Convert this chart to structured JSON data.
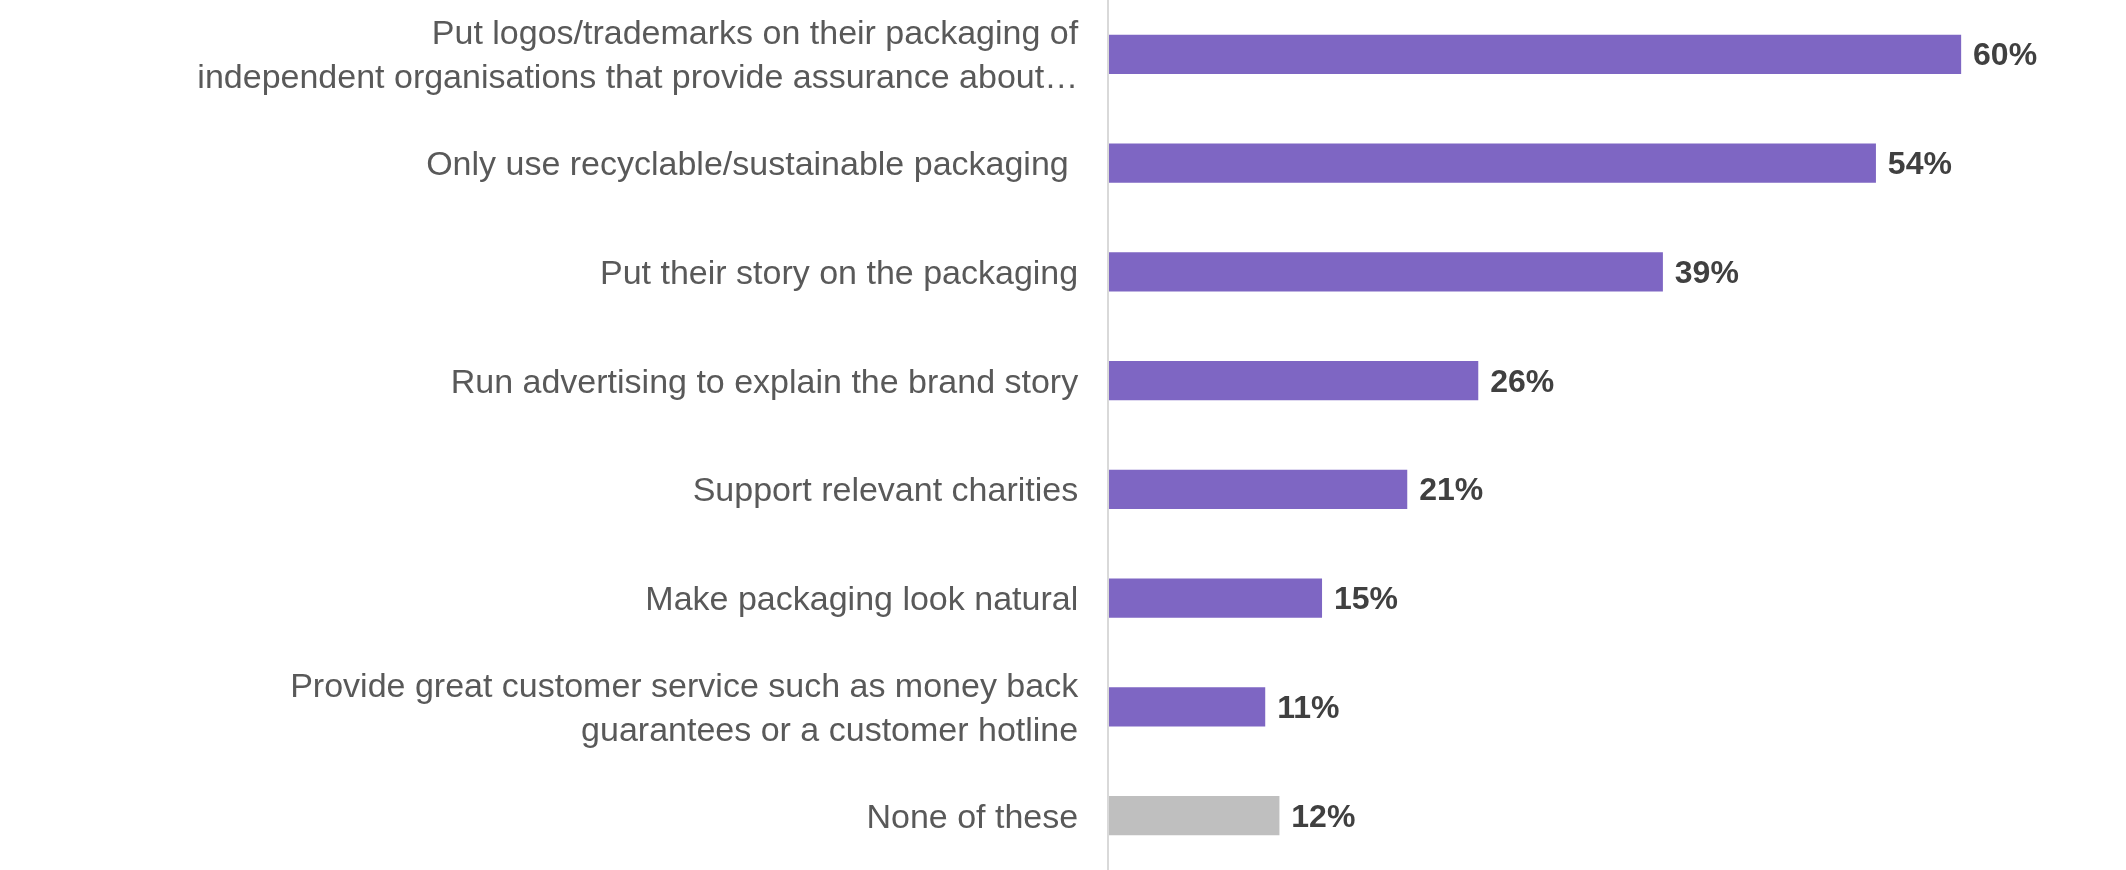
{
  "chart_data": {
    "type": "bar",
    "orientation": "horizontal",
    "data_labels": true,
    "legend": false,
    "tick_labels": "y",
    "categories": [
      "Put logos/trademarks on their packaging of\nindependent organisations that provide assurance about…",
      "Only use recyclable/sustainable packaging ",
      "Put their story on the packaging",
      "Run advertising to explain the brand story",
      "Support relevant charities",
      "Make packaging look natural",
      "Provide great customer service such as money back\nguarantees or a customer hotline",
      "None of these"
    ],
    "values": [
      60,
      54,
      39,
      26,
      21,
      15,
      11,
      12
    ],
    "value_labels": [
      "60%",
      "54%",
      "39%",
      "26%",
      "21%",
      "15%",
      "11%",
      "12%"
    ],
    "colors": [
      "#7e66c3",
      "#7e66c3",
      "#7e66c3",
      "#7e66c3",
      "#7e66c3",
      "#7e66c3",
      "#7e66c3",
      "#bfbfbf"
    ]
  }
}
